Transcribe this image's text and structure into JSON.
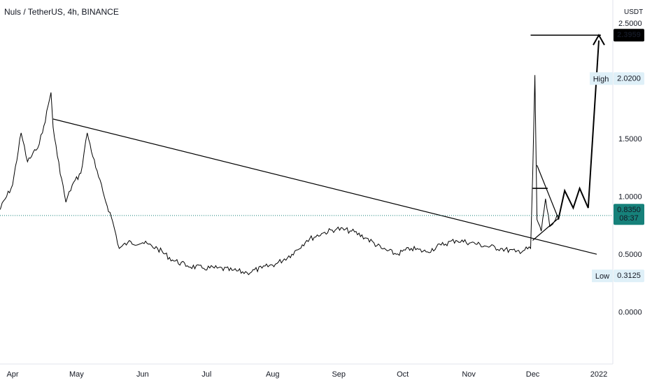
{
  "header": {
    "title": "Nuls / TetherUS, 4h, BINANCE"
  },
  "chart_data": {
    "type": "line",
    "title": "Nuls / TetherUS, 4h, BINANCE",
    "currency": "USDT",
    "ylim": [
      -0.45,
      2.7
    ],
    "y_ticks": [
      {
        "value": 2.5,
        "label": "2.5000"
      },
      {
        "value": 1.5,
        "label": "1.5000"
      },
      {
        "value": 1.0,
        "label": "1.0000"
      },
      {
        "value": 0.5,
        "label": "0.5000"
      },
      {
        "value": 0.0,
        "label": "0.0000"
      }
    ],
    "x_ticks": [
      "Apr",
      "May",
      "Jun",
      "Jul",
      "Aug",
      "Sep",
      "Oct",
      "Nov",
      "Dec",
      "2022"
    ],
    "series": [
      {
        "name": "NULSUSDT",
        "x": [
          "2021-03-25",
          "2021-04-01",
          "2021-04-05",
          "2021-04-08",
          "2021-04-12",
          "2021-04-15",
          "2021-04-19",
          "2021-04-20",
          "2021-04-22",
          "2021-04-26",
          "2021-04-29",
          "2021-05-03",
          "2021-05-06",
          "2021-05-10",
          "2021-05-14",
          "2021-05-18",
          "2021-05-21",
          "2021-05-25",
          "2021-06-01",
          "2021-06-08",
          "2021-06-15",
          "2021-06-22",
          "2021-06-29",
          "2021-07-06",
          "2021-07-13",
          "2021-07-20",
          "2021-07-27",
          "2021-08-03",
          "2021-08-10",
          "2021-08-17",
          "2021-08-24",
          "2021-08-31",
          "2021-09-07",
          "2021-09-14",
          "2021-09-21",
          "2021-09-28",
          "2021-10-05",
          "2021-10-12",
          "2021-10-19",
          "2021-10-26",
          "2021-11-02",
          "2021-11-09",
          "2021-11-16",
          "2021-11-23",
          "2021-11-30",
          "2021-12-01",
          "2021-12-02",
          "2021-12-03",
          "2021-12-05",
          "2021-12-07",
          "2021-12-09",
          "2021-12-11",
          "2021-12-13"
        ],
        "values": [
          0.85,
          1.1,
          1.55,
          1.3,
          1.4,
          1.55,
          1.9,
          1.6,
          1.35,
          0.95,
          1.1,
          1.2,
          1.55,
          1.25,
          1.0,
          0.78,
          0.55,
          0.6,
          0.6,
          0.55,
          0.45,
          0.4,
          0.38,
          0.38,
          0.36,
          0.34,
          0.38,
          0.42,
          0.5,
          0.62,
          0.68,
          0.72,
          0.7,
          0.64,
          0.55,
          0.5,
          0.55,
          0.52,
          0.58,
          0.62,
          0.6,
          0.57,
          0.55,
          0.52,
          0.55,
          1.2,
          2.05,
          0.8,
          0.7,
          0.98,
          0.74,
          0.78,
          0.835
        ]
      }
    ],
    "last_price": {
      "value": 0.835,
      "label": "0.8350",
      "countdown": "08:37"
    },
    "high": {
      "label": "High",
      "value": 2.02,
      "value_label": "2.0200"
    },
    "low": {
      "label": "Low",
      "value": 0.3125,
      "value_label": "0.3125"
    },
    "target": {
      "value": 2.3959,
      "label": "2.3959"
    },
    "annotations": {
      "descending_trendline": [
        [
          "2021-04-20",
          1.67
        ],
        [
          "2021-12-31",
          0.5
        ]
      ],
      "lower_trendline": [
        [
          "2021-12-01",
          0.62
        ],
        [
          "2021-12-13",
          0.81
        ]
      ],
      "upper_trendline": [
        [
          "2021-12-03",
          1.27
        ],
        [
          "2021-12-13",
          0.81
        ]
      ],
      "resistance_line": [
        [
          "2021-12-01",
          1.07
        ],
        [
          "2021-12-08",
          1.07
        ]
      ],
      "projection_path": [
        [
          "2021-12-13",
          0.8
        ],
        [
          "2021-12-16",
          1.05
        ],
        [
          "2021-12-20",
          0.9
        ],
        [
          "2021-12-23",
          1.07
        ],
        [
          "2021-12-27",
          0.9
        ],
        [
          "2022-01-01",
          2.35
        ]
      ],
      "target_line": [
        [
          "2021-11-30",
          2.3959
        ],
        [
          "2022-01-02",
          2.3959
        ]
      ]
    }
  },
  "colors": {
    "price_line": "#000000",
    "axis_text": "#131722",
    "last_price_bg": "#16817a",
    "label_bg": "#dff0f8",
    "target_bg": "#000000"
  }
}
